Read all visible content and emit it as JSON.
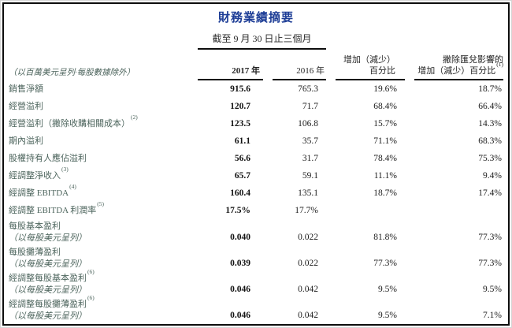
{
  "colors": {
    "title": "#1d3d96",
    "label": "#4c645c",
    "text": "#1f1f1f",
    "line": "#0d0d0d"
  },
  "header": {
    "title": "財務業績摘要",
    "period": "截至 9 月 30 日止三個月"
  },
  "columns": {
    "note": "（以百萬美元呈列·每股數據除外）",
    "y2017": "2017 年",
    "y2016": "2016 年",
    "change1": "增加（減少）",
    "change2": "百分比",
    "fx1": "撇除匯兌影響的",
    "fx2": "增加（減少）百分比",
    "fx_footnote": "(1)"
  },
  "rows": [
    {
      "label": "銷售淨額",
      "footnote": "",
      "sub": "",
      "v2017": "915.6",
      "v2016": "765.3",
      "chg": "19.6%",
      "fx": "18.7%"
    },
    {
      "label": "經營溢利",
      "footnote": "",
      "sub": "",
      "v2017": "120.7",
      "v2016": "71.7",
      "chg": "68.4%",
      "fx": "66.4%"
    },
    {
      "label": "經營溢利（撇除收購相關成本）",
      "footnote": "(2)",
      "sub": "",
      "v2017": "123.5",
      "v2016": "106.8",
      "chg": "15.7%",
      "fx": "14.3%"
    },
    {
      "label": "期內溢利",
      "footnote": "",
      "sub": "",
      "v2017": "61.1",
      "v2016": "35.7",
      "chg": "71.1%",
      "fx": "68.3%"
    },
    {
      "label": "股權持有人應佔溢利",
      "footnote": "",
      "sub": "",
      "v2017": "56.6",
      "v2016": "31.7",
      "chg": "78.4%",
      "fx": "75.3%"
    },
    {
      "label": "經調整淨收入",
      "footnote": "(3)",
      "sub": "",
      "v2017": "65.7",
      "v2016": "59.1",
      "chg": "11.1%",
      "fx": "9.4%"
    },
    {
      "label": "經調整 EBITDA",
      "footnote": "(4)",
      "sub": "",
      "v2017": "160.4",
      "v2016": "135.1",
      "chg": "18.7%",
      "fx": "17.4%"
    },
    {
      "label": "經調整 EBITDA 利潤率",
      "footnote": "(5)",
      "sub": "",
      "v2017": "17.5%",
      "v2016": "17.7%",
      "chg": "",
      "fx": ""
    },
    {
      "label": "每股基本盈利",
      "footnote": "",
      "sub": "（以每股美元呈列）",
      "v2017": "0.040",
      "v2016": "0.022",
      "chg": "81.8%",
      "fx": "77.3%"
    },
    {
      "label": "每股攤薄盈利",
      "footnote": "",
      "sub": "（以每股美元呈列）",
      "v2017": "0.039",
      "v2016": "0.022",
      "chg": "77.3%",
      "fx": "77.3%"
    },
    {
      "label": "經調整每股基本盈利",
      "footnote": "(6)",
      "sub": "（以每股美元呈列）",
      "v2017": "0.046",
      "v2016": "0.042",
      "chg": "9.5%",
      "fx": "9.5%"
    },
    {
      "label": "經調整每股攤薄盈利",
      "footnote": "(6)",
      "sub": "（以每股美元呈列）",
      "v2017": "0.046",
      "v2016": "0.042",
      "chg": "9.5%",
      "fx": "7.1%"
    }
  ]
}
